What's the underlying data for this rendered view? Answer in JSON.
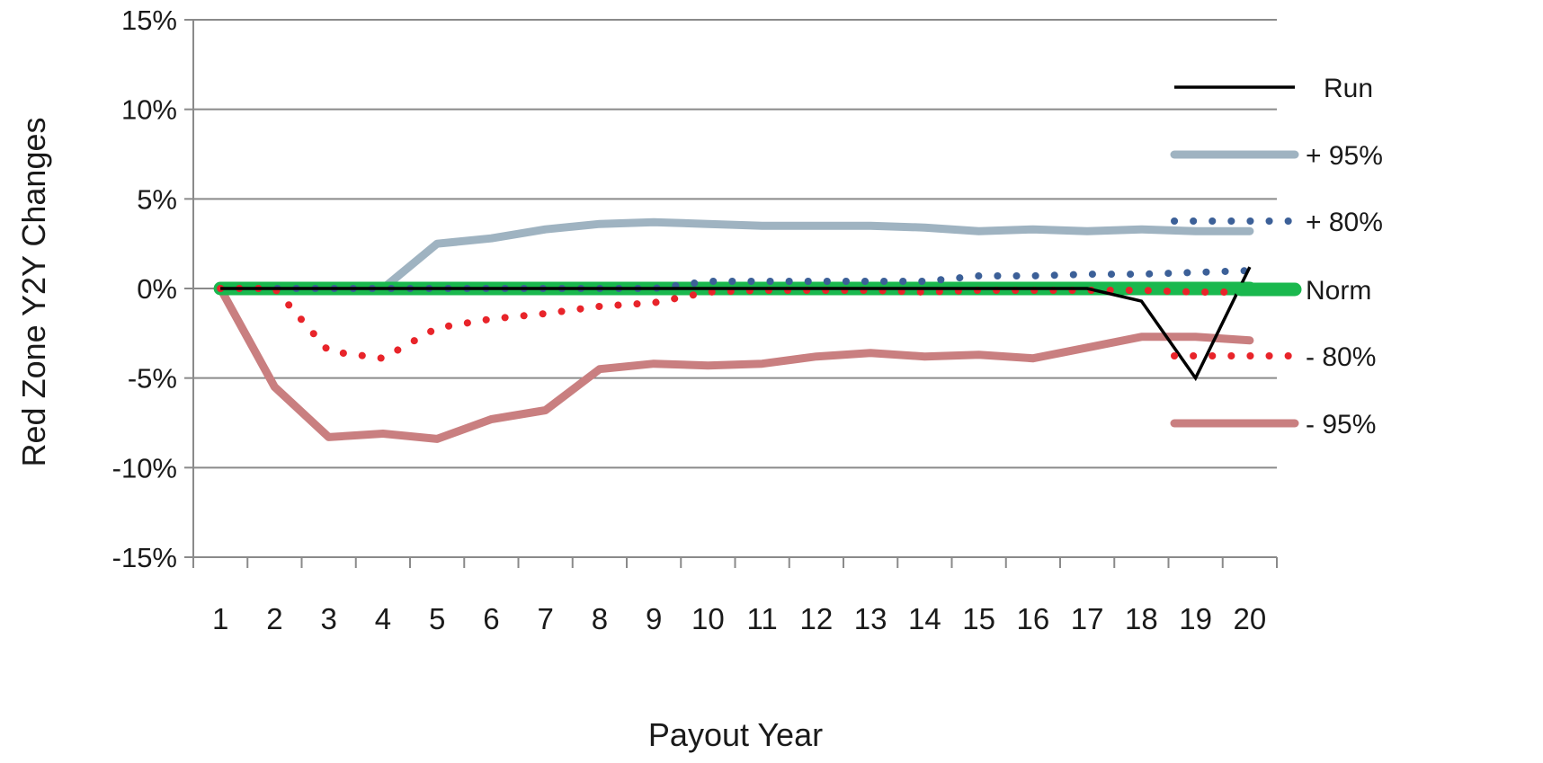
{
  "chart_data": {
    "type": "line",
    "xlabel": "Payout Year",
    "ylabel": "Red Zone Y2Y Changes",
    "x": [
      1,
      2,
      3,
      4,
      5,
      6,
      7,
      8,
      9,
      10,
      11,
      12,
      13,
      14,
      15,
      16,
      17,
      18,
      19,
      20
    ],
    "ylim": [
      -15,
      15
    ],
    "yticks": [
      15,
      10,
      5,
      0,
      -5,
      -10,
      -15
    ],
    "ytick_labels": [
      "15%",
      "10%",
      "5%",
      "0%",
      "-5%",
      "-10%",
      "-15%"
    ],
    "xtick_labels": [
      "1",
      "2",
      "3",
      "4",
      "5",
      "6",
      "7",
      "8",
      "9",
      "10",
      "11",
      "12",
      "13",
      "14",
      "15",
      "16",
      "17",
      "18",
      "19",
      "20"
    ],
    "grid": "horizontal",
    "legend_position": "right",
    "series": [
      {
        "name": "Run",
        "color": "#000000",
        "style": "solid-thin",
        "values": [
          0,
          0,
          0,
          0,
          0,
          0,
          0,
          0,
          0,
          0,
          0,
          0,
          0,
          0,
          0,
          0,
          0,
          -0.7,
          -5.0,
          1.2
        ]
      },
      {
        "name": "+ 95%",
        "color": "#9fb3c1",
        "style": "solid-thick",
        "values": [
          0,
          0,
          0,
          0,
          2.5,
          2.8,
          3.3,
          3.6,
          3.7,
          3.6,
          3.5,
          3.5,
          3.5,
          3.4,
          3.2,
          3.3,
          3.2,
          3.3,
          3.2,
          3.2
        ]
      },
      {
        "name": "+ 80%",
        "color": "#3c6098",
        "style": "dotted",
        "values": [
          0,
          0,
          0,
          0,
          0,
          0,
          0,
          0,
          0,
          0.4,
          0.4,
          0.4,
          0.4,
          0.4,
          0.7,
          0.7,
          0.8,
          0.8,
          0.9,
          1.0
        ]
      },
      {
        "name": "Norm",
        "color": "#1ab84e",
        "style": "solid-heavy",
        "values": [
          0,
          0,
          0,
          0,
          0,
          0,
          0,
          0,
          0,
          0,
          0,
          0,
          0,
          0,
          0,
          0,
          0,
          0,
          0,
          0
        ]
      },
      {
        "name": "- 80%",
        "color": "#e8242a",
        "style": "dotted",
        "values": [
          0,
          0,
          -3.5,
          -3.9,
          -2.2,
          -1.7,
          -1.4,
          -1.0,
          -0.8,
          -0.2,
          -0.1,
          -0.1,
          -0.1,
          -0.2,
          -0.1,
          -0.1,
          -0.1,
          -0.1,
          -0.2,
          -0.2
        ]
      },
      {
        "name": "- 95%",
        "color": "#c97f80",
        "style": "solid-thick",
        "values": [
          0,
          -5.5,
          -8.3,
          -8.1,
          -8.4,
          -7.3,
          -6.8,
          -4.5,
          -4.2,
          -4.3,
          -4.2,
          -3.8,
          -3.6,
          -3.8,
          -3.7,
          -3.9,
          -3.3,
          -2.7,
          -2.7,
          -2.9
        ]
      }
    ]
  }
}
